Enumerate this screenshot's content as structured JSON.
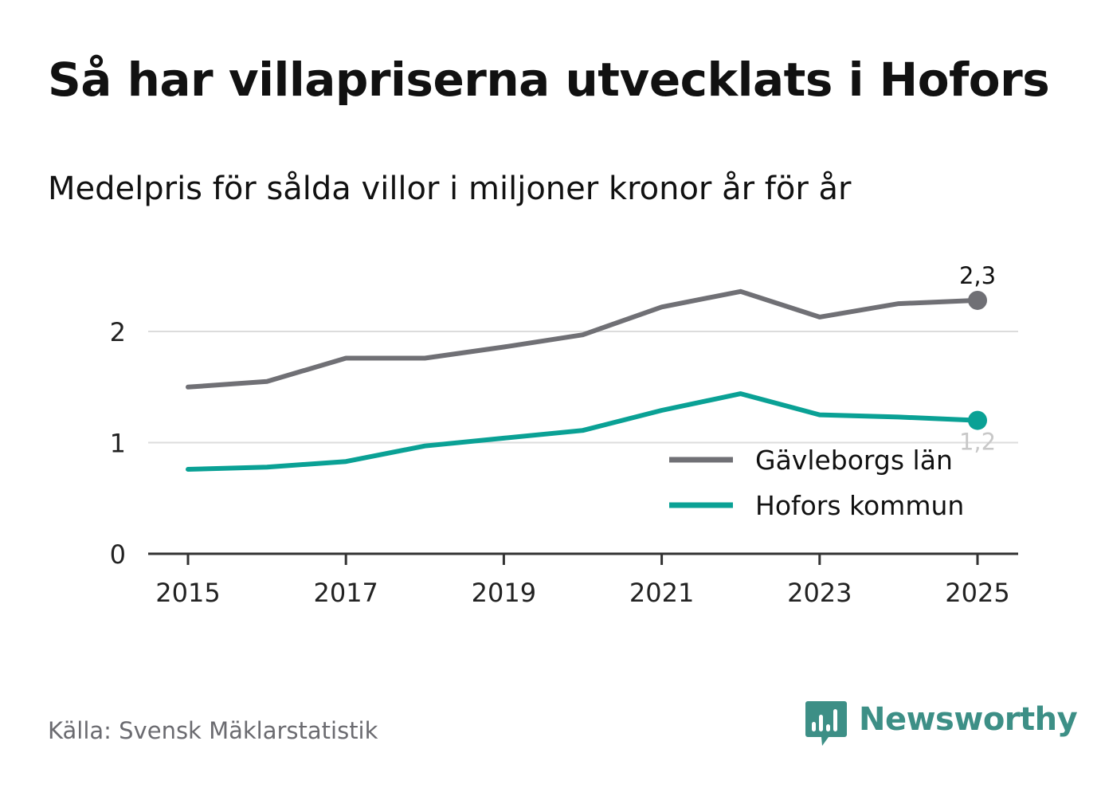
{
  "title": "Så har villapriserna utvecklats i Hofors",
  "subtitle": "Medelpris för sålda villor i miljoner kronor år för år",
  "source": "Källa: Svensk Mäklarstatistik",
  "brand": {
    "name": "Newsworthy",
    "logo_icon": "bar-chart-speech-bubble-icon",
    "color": "#3d8f86"
  },
  "chart_data": {
    "type": "line",
    "title": "Så har villapriserna utvecklats i Hofors",
    "xlabel": "",
    "ylabel": "Medelpris för sålda villor i miljoner kronor",
    "x": [
      2015,
      2016,
      2017,
      2018,
      2019,
      2020,
      2021,
      2022,
      2023,
      2024,
      2025
    ],
    "xlim": [
      2014.5,
      2025.5
    ],
    "x_ticks": [
      "2015",
      "2017",
      "2019",
      "2021",
      "2023",
      "2025"
    ],
    "x_tick_values": [
      2015,
      2017,
      2019,
      2021,
      2023,
      2025
    ],
    "ylim": [
      0,
      2.5
    ],
    "y_ticks": [
      "0",
      "1",
      "2"
    ],
    "y_tick_values": [
      0,
      1,
      2
    ],
    "grid": true,
    "legend_position": "bottom-right",
    "series": [
      {
        "name": "Gävleborgs län",
        "color": "#707075",
        "values": [
          1.5,
          1.55,
          1.76,
          1.76,
          1.86,
          1.97,
          2.22,
          2.36,
          2.13,
          2.25,
          2.28
        ],
        "end_label": "2,3"
      },
      {
        "name": "Hofors kommun",
        "color": "#0aa195",
        "values": [
          0.76,
          0.78,
          0.83,
          0.97,
          1.04,
          1.11,
          1.29,
          1.44,
          1.25,
          1.23,
          1.2
        ],
        "end_label": "1,2"
      }
    ]
  }
}
